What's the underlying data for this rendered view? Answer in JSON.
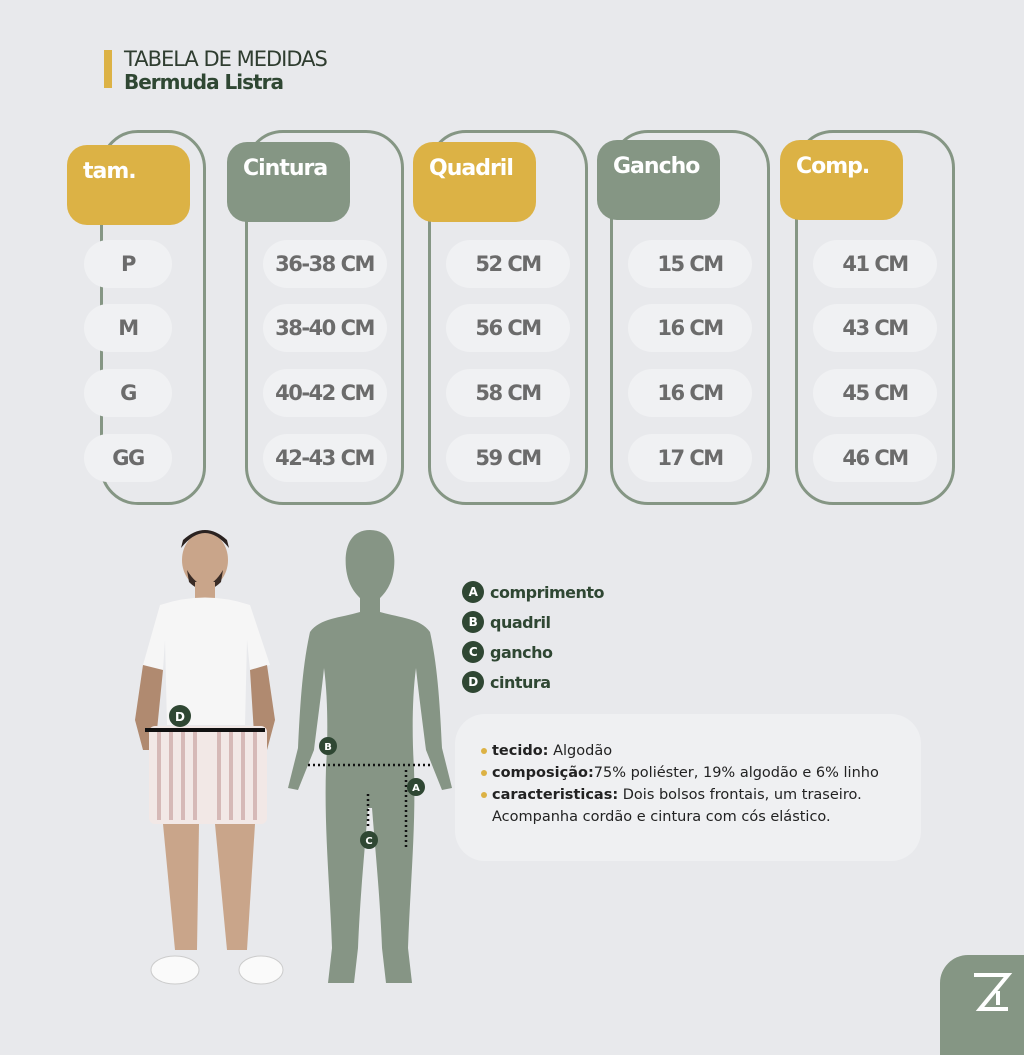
{
  "header": {
    "title": "TABELA DE MEDIDAS",
    "subtitle": "Bermuda Listra"
  },
  "colors": {
    "gold": "#dcb245",
    "sage": "#859684",
    "dark_green": "#2f4733",
    "background": "#e8e9ec"
  },
  "table": {
    "columns": [
      {
        "label": "tam.",
        "style": "gold",
        "values": [
          "P",
          "M",
          "G",
          "GG"
        ]
      },
      {
        "label": "Cintura",
        "style": "sage",
        "values": [
          "36-38 CM",
          "38-40 CM",
          "40-42 CM",
          "42-43 CM"
        ]
      },
      {
        "label": "Quadril",
        "style": "gold",
        "values": [
          "52 CM",
          "56 CM",
          "58 CM",
          "59 CM"
        ]
      },
      {
        "label": "Gancho",
        "style": "sage",
        "values": [
          "15 CM",
          "16 CM",
          "16 CM",
          "17 CM"
        ]
      },
      {
        "label": "Comp.",
        "style": "gold",
        "values": [
          "41 CM",
          "43 CM",
          "45 CM",
          "46 CM"
        ]
      }
    ]
  },
  "legend": [
    {
      "letter": "A",
      "label": "comprimento"
    },
    {
      "letter": "B",
      "label": "quadril"
    },
    {
      "letter": "C",
      "label": "gancho"
    },
    {
      "letter": "D",
      "label": "cintura"
    }
  ],
  "info": {
    "tecido_label": "tecido:",
    "tecido": " Algodão",
    "composicao_label": "composição:",
    "composicao": "75% poliéster, 19% algodão e 6% linho",
    "caracteristicas_label": "caracteristicas:",
    "caracteristicas": " Dois bolsos frontais, um traseiro.",
    "caracteristicas2": "Acompanha cordão e cintura com cós elástico."
  },
  "figure_markers": {
    "a": "A",
    "b": "B",
    "c": "C",
    "d": "D"
  }
}
